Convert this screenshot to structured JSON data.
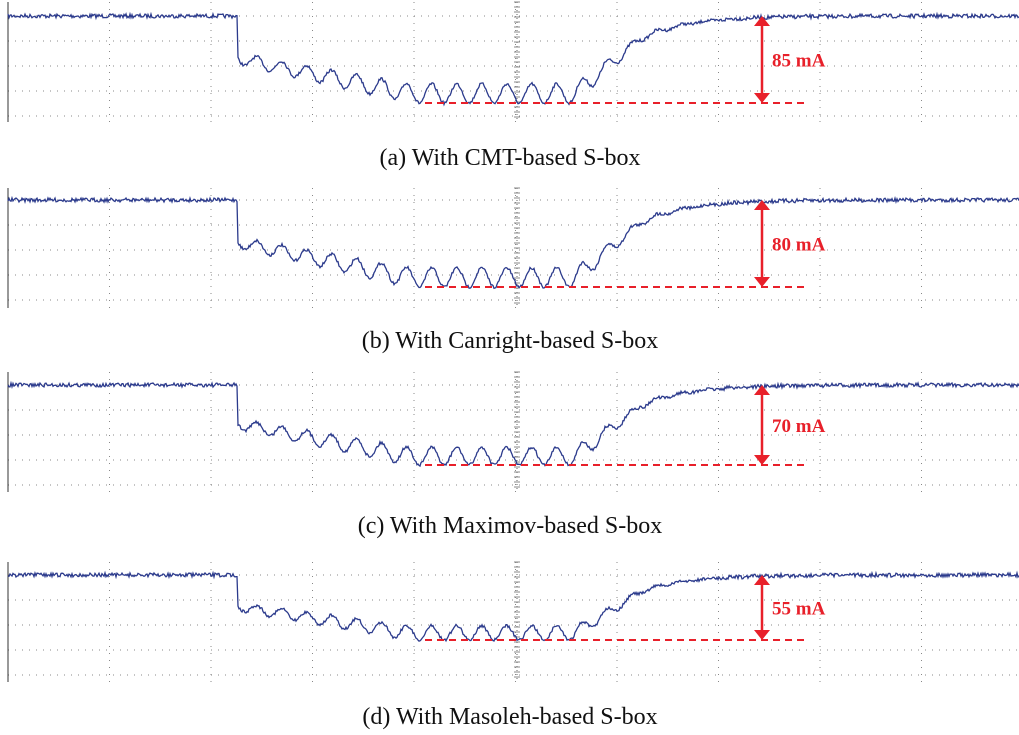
{
  "panels": [
    {
      "annotation": "85 mA",
      "caption": "(a) With CMT-based S-box"
    },
    {
      "annotation": "80 mA",
      "caption": "(b) With Canright-based S-box"
    },
    {
      "annotation": "70 mA",
      "caption": "(c) With Maximov-based S-box"
    },
    {
      "annotation": "55 mA",
      "caption": "(d) With Masoleh-based S-box"
    }
  ]
}
